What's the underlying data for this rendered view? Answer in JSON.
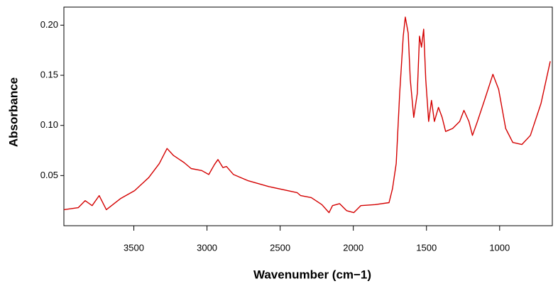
{
  "chart_data": {
    "type": "line",
    "y_label": "Absorbance",
    "x_label": "Wavenumber (cm−1)",
    "xlim": [
      3978,
      640
    ],
    "ylim": [
      0,
      0.218
    ],
    "xticks": [
      3500,
      3000,
      2500,
      2000,
      1500,
      1000
    ],
    "yticks": [
      {
        "value": 0.05,
        "label": "0.05"
      },
      {
        "value": 0.1,
        "label": "0.10"
      },
      {
        "value": 0.15,
        "label": "0.15"
      },
      {
        "value": 0.2,
        "label": "0.20"
      }
    ],
    "series": [
      {
        "color": "#d40000",
        "x": [
          3978,
          3880,
          3833,
          3785,
          3737,
          3688,
          3592,
          3495,
          3398,
          3326,
          3273,
          3229,
          3157,
          3108,
          3036,
          2988,
          2949,
          2925,
          2891,
          2867,
          2819,
          2722,
          2577,
          2384,
          2360,
          2287,
          2215,
          2166,
          2142,
          2094,
          2046,
          1997,
          1949,
          1852,
          1756,
          1732,
          1707,
          1683,
          1659,
          1645,
          1625,
          1611,
          1587,
          1563,
          1548,
          1534,
          1519,
          1505,
          1485,
          1466,
          1446,
          1418,
          1393,
          1369,
          1321,
          1273,
          1244,
          1210,
          1186,
          1152,
          1104,
          1046,
          1007,
          959,
          910,
          848,
          790,
          717,
          654
        ],
        "values": [
          0.016,
          0.018,
          0.025,
          0.02,
          0.03,
          0.016,
          0.027,
          0.035,
          0.048,
          0.062,
          0.077,
          0.07,
          0.063,
          0.057,
          0.055,
          0.051,
          0.061,
          0.066,
          0.058,
          0.059,
          0.051,
          0.045,
          0.039,
          0.033,
          0.03,
          0.028,
          0.021,
          0.013,
          0.02,
          0.022,
          0.015,
          0.013,
          0.02,
          0.021,
          0.023,
          0.037,
          0.062,
          0.132,
          0.189,
          0.208,
          0.192,
          0.146,
          0.108,
          0.132,
          0.189,
          0.178,
          0.196,
          0.146,
          0.104,
          0.125,
          0.104,
          0.118,
          0.108,
          0.094,
          0.097,
          0.104,
          0.115,
          0.104,
          0.09,
          0.104,
          0.125,
          0.151,
          0.136,
          0.097,
          0.083,
          0.081,
          0.09,
          0.122,
          0.164
        ]
      }
    ]
  }
}
